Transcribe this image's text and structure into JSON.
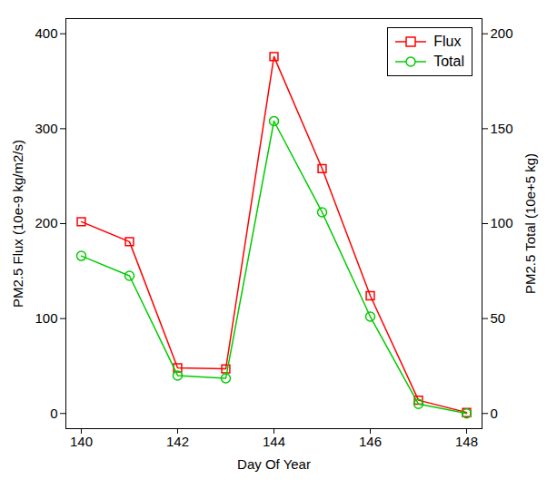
{
  "chart_data": {
    "type": "line",
    "x_label": "Day Of Year",
    "y_label": "PM2.5 Flux (10e-9 kg/m2/s)",
    "y2_label": "PM2.5 Total (10e+5 kg)",
    "x": [
      140,
      141,
      142,
      143,
      144,
      145,
      146,
      147,
      148
    ],
    "series": [
      {
        "name": "Flux",
        "color": "#ff0000",
        "marker": "square",
        "values": [
          202,
          181,
          48,
          47,
          376,
          258,
          124,
          14,
          1
        ]
      },
      {
        "name": "Total",
        "color": "#00cc00",
        "marker": "circle",
        "axis": "y2",
        "values": [
          83,
          72.5,
          20,
          18.5,
          154,
          106,
          51,
          5,
          0
        ]
      }
    ],
    "xlim": [
      139.68,
      148.32
    ],
    "xticks": [
      140,
      142,
      144,
      146,
      148
    ],
    "ylim": [
      -16,
      416
    ],
    "yticks": [
      0,
      100,
      200,
      300,
      400
    ],
    "y2lim": [
      -8,
      208
    ],
    "y2ticks": [
      0,
      50,
      100,
      150,
      200
    ],
    "legend": "topright"
  }
}
